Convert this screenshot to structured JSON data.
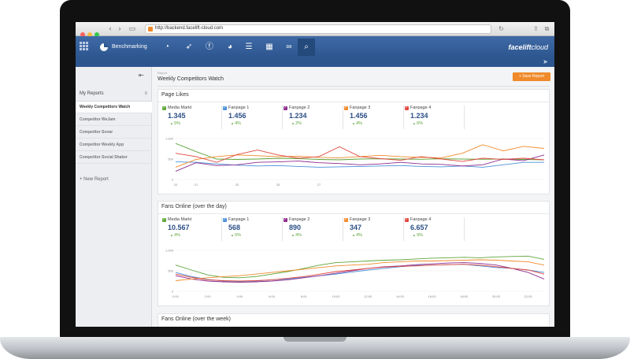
{
  "browser": {
    "url": "http://backend.facelift-cloud.com",
    "back_icon": "chevron-left-icon",
    "forward_icon": "chevron-right-icon"
  },
  "app": {
    "section_label": "Benchmarking",
    "brand_bold": "facelift",
    "brand_light": "cloud",
    "accent": "#2d568f",
    "orange": "#f08a2b"
  },
  "sidebar": {
    "heading": "My Reports",
    "items": [
      {
        "label": "Weekly Competitors Watch",
        "active": true
      },
      {
        "label": "Competitor WeJam",
        "active": false
      },
      {
        "label": "Competitor Sonar",
        "active": false
      },
      {
        "label": "Competitor Weekly App",
        "active": false
      },
      {
        "label": "Competitor Social Shaker",
        "active": false
      }
    ],
    "new_report": "+ New Report"
  },
  "report": {
    "breadcrumb": "Report",
    "title": "Weekly Competitors Watch",
    "save_button": "+ Save Report"
  },
  "cards": {
    "page_likes": {
      "title": "Page Likes",
      "metrics": [
        {
          "name": "Media Markt",
          "value": "1.345",
          "change": "5%",
          "color": "#5fa53a"
        },
        {
          "name": "Fanpage 1",
          "value": "1.456",
          "change": "4%",
          "color": "#4a90d9"
        },
        {
          "name": "Fanpage 2",
          "value": "1.234",
          "change": "2%",
          "color": "#8e2c8e"
        },
        {
          "name": "Fanpage 3",
          "value": "1.456",
          "change": "4%",
          "color": "#f08a2b"
        },
        {
          "name": "Fanpage 4",
          "value": "1.234",
          "change": "6%",
          "color": "#e0473c"
        }
      ]
    },
    "fans_day": {
      "title": "Fans Online (over the day)",
      "metrics": [
        {
          "name": "Media Markt",
          "value": "10.567",
          "change": "4%",
          "color": "#5fa53a"
        },
        {
          "name": "Fanpage 1",
          "value": "568",
          "change": "6%",
          "color": "#4a90d9"
        },
        {
          "name": "Fanpage 2",
          "value": "890",
          "change": "4%",
          "color": "#8e2c8e"
        },
        {
          "name": "Fanpage 3",
          "value": "347",
          "change": "4%",
          "color": "#f08a2b"
        },
        {
          "name": "Fanpage 4",
          "value": "6.657",
          "change": "9%",
          "color": "#e0473c"
        }
      ]
    },
    "fans_week": {
      "title": "Fans Online (over the week)"
    }
  },
  "chart_data": [
    {
      "type": "line",
      "ylim": [
        0,
        1000
      ],
      "yticks": [
        "1.000",
        "500",
        "0"
      ],
      "x": [
        "20",
        "21",
        "22",
        "23",
        "24",
        "25",
        "26",
        "27",
        "28",
        "29",
        "30",
        "31",
        "1",
        "2",
        "3",
        "4",
        "5",
        "6",
        "7"
      ],
      "xticks": [
        "20",
        "21",
        "23",
        "25",
        "27"
      ],
      "series": [
        {
          "name": "Media Markt",
          "color": "#5fa53a",
          "values": [
            880,
            680,
            500,
            490,
            500,
            520,
            510,
            490,
            480,
            500,
            505,
            500,
            495,
            505,
            500,
            495,
            500,
            490,
            480
          ]
        },
        {
          "name": "Fanpage 1",
          "color": "#4a90d9",
          "values": [
            430,
            420,
            380,
            350,
            330,
            340,
            320,
            300,
            310,
            320,
            330,
            340,
            320,
            310,
            330,
            300,
            360,
            420,
            420
          ]
        },
        {
          "name": "Fanpage 2",
          "color": "#8e2c8e",
          "values": [
            200,
            410,
            340,
            360,
            420,
            430,
            450,
            410,
            390,
            360,
            380,
            420,
            380,
            370,
            330,
            360,
            500,
            460,
            600
          ]
        },
        {
          "name": "Fanpage 3",
          "color": "#f08a2b",
          "values": [
            300,
            490,
            560,
            600,
            580,
            560,
            570,
            540,
            530,
            560,
            590,
            560,
            540,
            530,
            640,
            850,
            700,
            810,
            760
          ]
        },
        {
          "name": "Fanpage 4",
          "color": "#e0473c",
          "values": [
            640,
            560,
            420,
            610,
            720,
            600,
            520,
            560,
            800,
            560,
            510,
            470,
            560,
            500,
            440,
            520,
            490,
            520,
            480
          ]
        }
      ]
    },
    {
      "type": "line",
      "ylim": [
        0,
        1000
      ],
      "yticks": [
        "1.000",
        "500",
        "0"
      ],
      "x": [
        "0:00",
        "1:00",
        "2:00",
        "3:00",
        "4:00",
        "5:00",
        "6:00",
        "7:00",
        "8:00",
        "9:00",
        "10:00",
        "11:00",
        "12:00",
        "13:00",
        "14:00",
        "15:00",
        "16:00",
        "17:00",
        "18:00",
        "19:00",
        "20:00",
        "21:00",
        "22:00",
        "23:00"
      ],
      "xticks": [
        "0:00",
        "2:00",
        "4:00",
        "6:00",
        "8:00",
        "10:00",
        "12:00",
        "14:00",
        "16:00",
        "18:00",
        "20:00",
        "22:00"
      ],
      "series": [
        {
          "name": "Media Markt",
          "color": "#5fa53a",
          "values": [
            640,
            520,
            400,
            340,
            330,
            360,
            420,
            480,
            560,
            640,
            700,
            720,
            740,
            760,
            770,
            790,
            810,
            820,
            830,
            820,
            840,
            850,
            860,
            780
          ]
        },
        {
          "name": "Fanpage 1",
          "color": "#4a90d9",
          "values": [
            460,
            360,
            290,
            250,
            240,
            250,
            280,
            300,
            340,
            380,
            420,
            470,
            520,
            560,
            600,
            630,
            640,
            650,
            660,
            620,
            580,
            560,
            520,
            460
          ]
        },
        {
          "name": "Fanpage 2",
          "color": "#8e2c8e",
          "values": [
            380,
            300,
            250,
            230,
            220,
            230,
            250,
            280,
            330,
            380,
            440,
            500,
            560,
            600,
            620,
            650,
            670,
            690,
            700,
            680,
            640,
            560,
            460,
            300
          ]
        },
        {
          "name": "Fanpage 3",
          "color": "#f08a2b",
          "values": [
            260,
            300,
            330,
            360,
            380,
            420,
            460,
            500,
            540,
            580,
            620,
            640,
            660,
            700,
            720,
            740,
            740,
            750,
            760,
            770,
            760,
            740,
            720,
            640
          ]
        },
        {
          "name": "Fanpage 4",
          "color": "#e0473c",
          "values": [
            420,
            340,
            280,
            260,
            250,
            260,
            280,
            320,
            360,
            420,
            480,
            520,
            560,
            590,
            610,
            620,
            640,
            650,
            660,
            640,
            600,
            560,
            520,
            420
          ]
        }
      ]
    }
  ]
}
